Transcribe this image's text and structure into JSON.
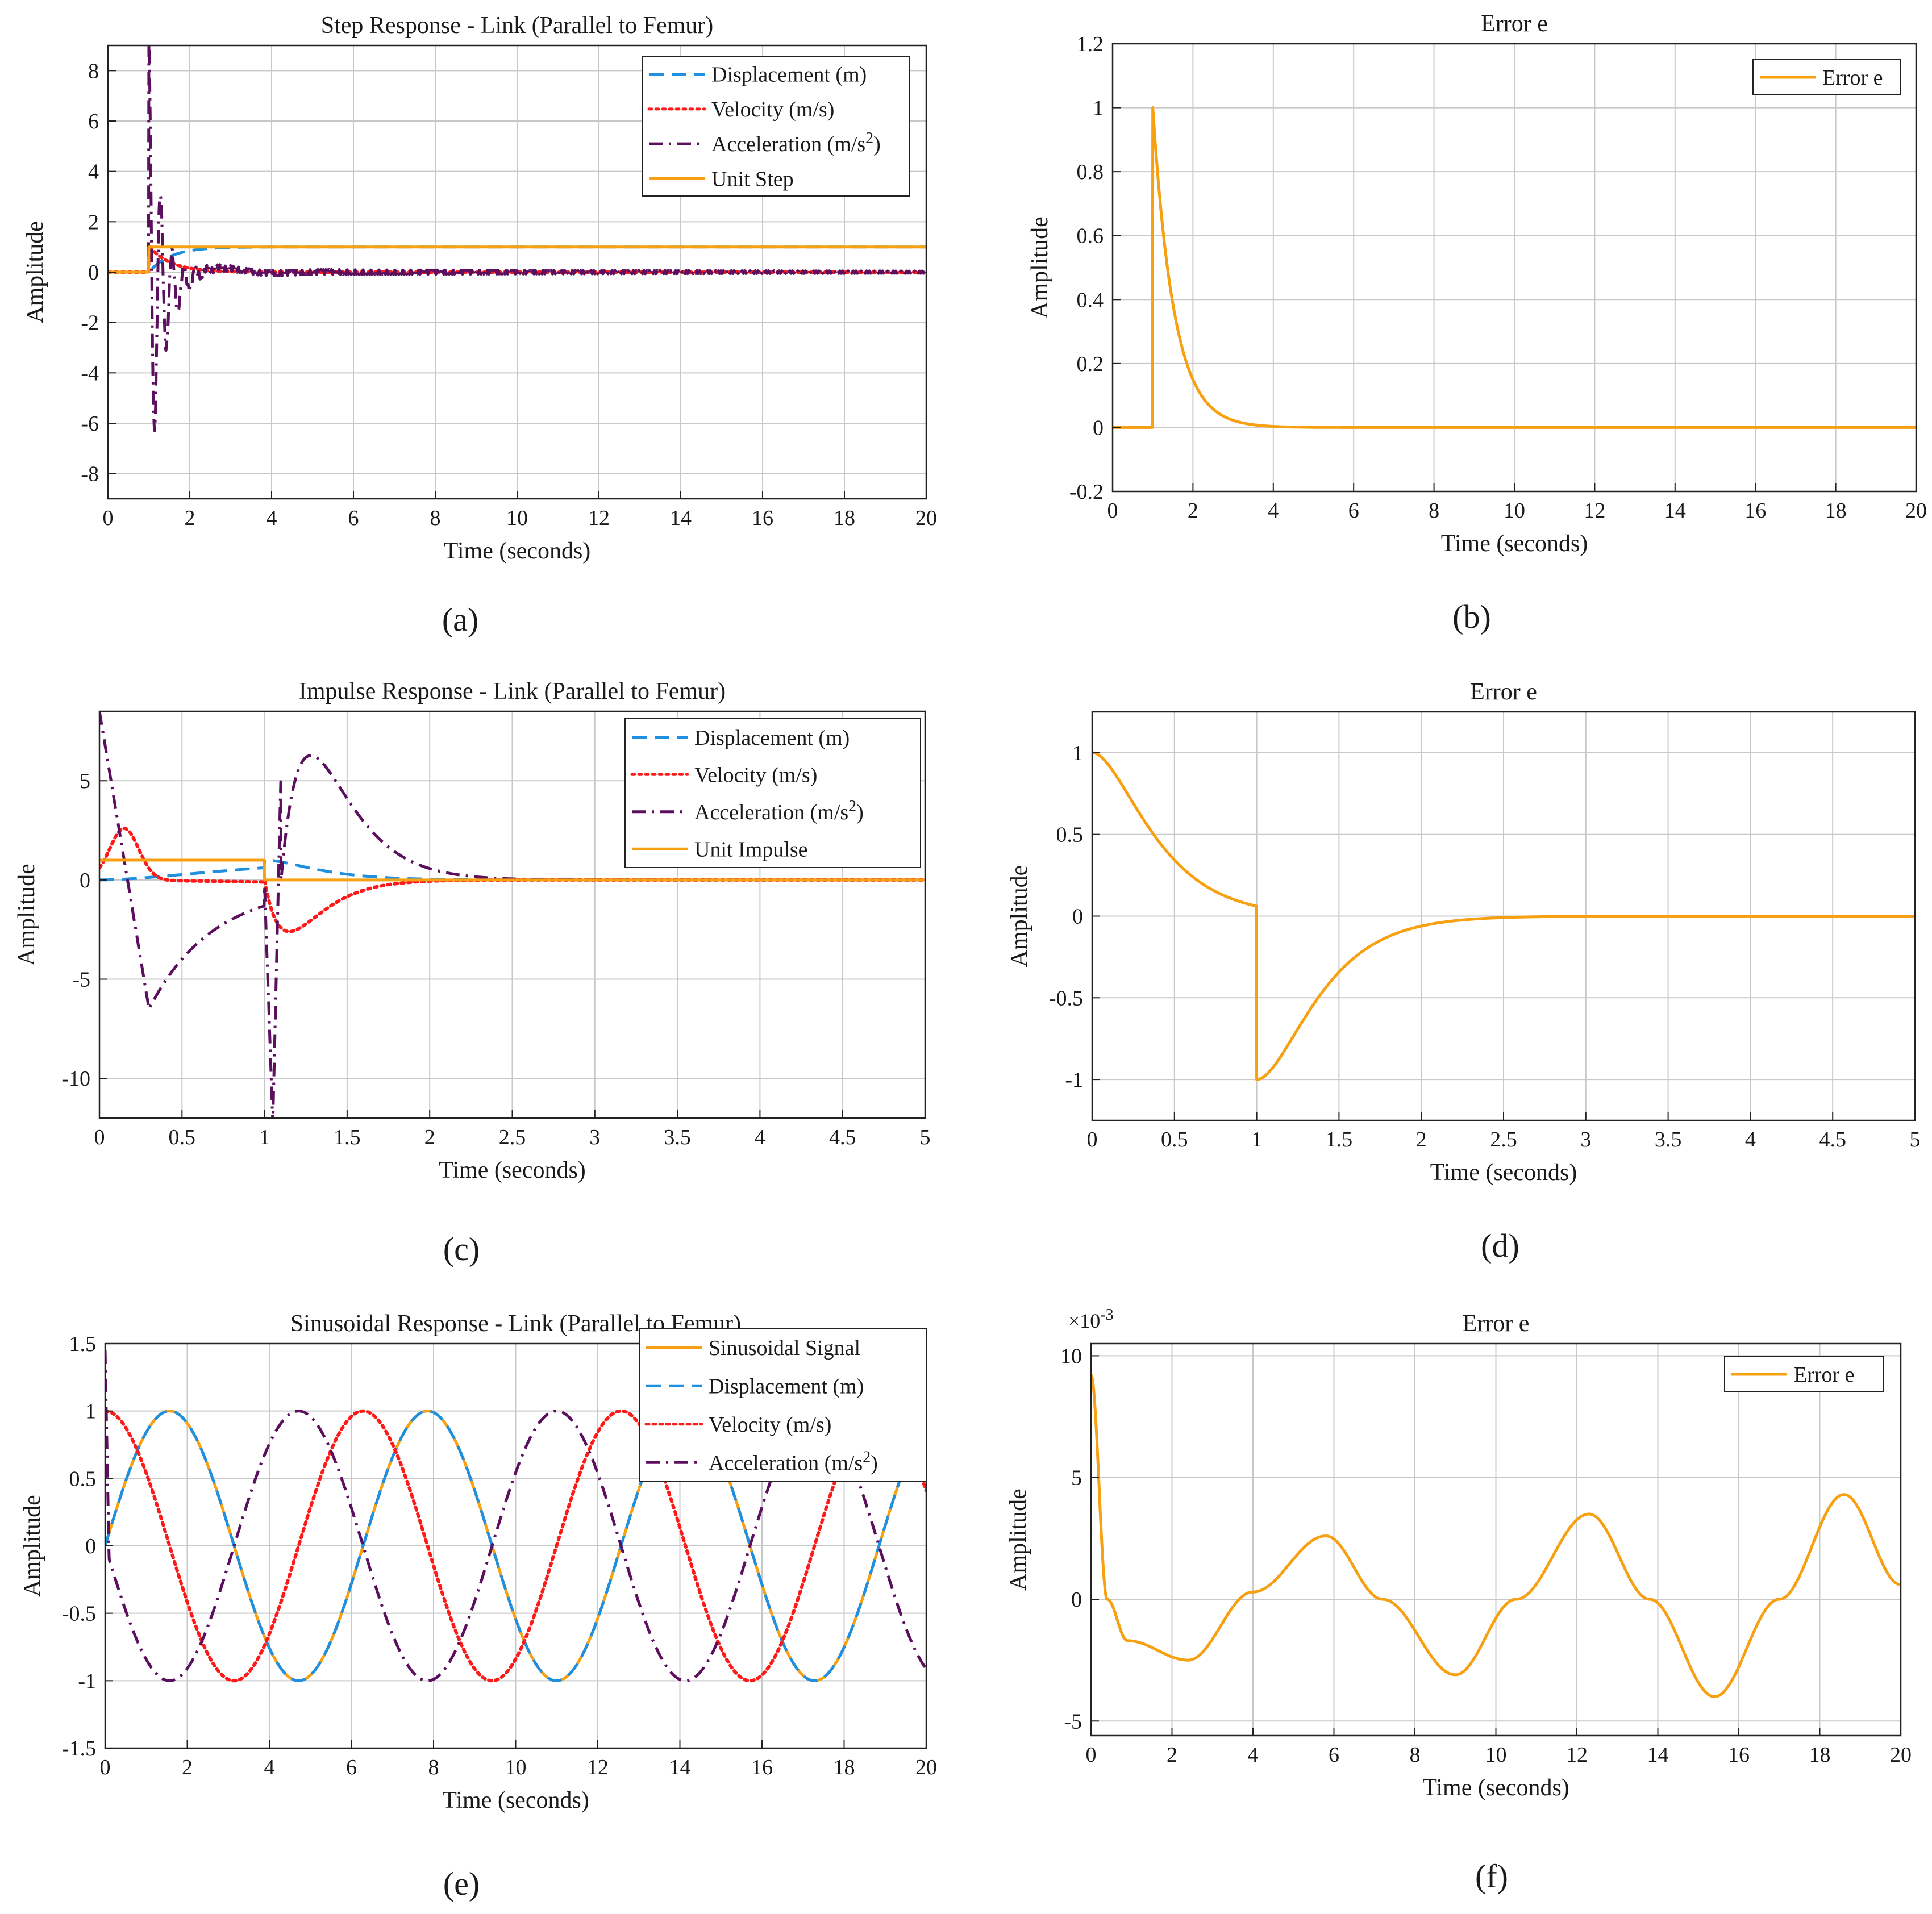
{
  "colors": {
    "displacement": "#1f8fe0",
    "velocity": "#ff1a1a",
    "acceleration": "#5b0f5e",
    "input": "#f7a012",
    "error": "#f7a012",
    "grid": "#c8c8c8",
    "axis": "#222222"
  },
  "chart_data": [
    {
      "id": "a",
      "type": "line",
      "caption": "(a)",
      "title": "Step Response - Link (Parallel to Femur)",
      "xlabel": "Time (seconds)",
      "ylabel": "Amplitude",
      "xlim": [
        0,
        20
      ],
      "ylim": [
        -9,
        9
      ],
      "xticks": [
        0,
        2,
        4,
        6,
        8,
        10,
        12,
        14,
        16,
        18,
        20
      ],
      "xtick_labels": [
        "0",
        "2",
        "4",
        "6",
        "8",
        "10",
        "12",
        "14",
        "16",
        "18",
        "20"
      ],
      "yticks": [
        -8,
        -6,
        -4,
        -2,
        0,
        2,
        4,
        6,
        8
      ],
      "ytick_labels": [
        "-8",
        "-6",
        "-4",
        "-2",
        "0",
        "2",
        "4",
        "6",
        "8"
      ],
      "legend_position": "top-right",
      "series": [
        {
          "name": "Displacement (m)",
          "label_base": "Displacement (m)",
          "color": "displacement",
          "dash": "long-dash",
          "model": "step_disp"
        },
        {
          "name": "Velocity (m/s)",
          "label_base": "Velocity (m/s)",
          "color": "velocity",
          "dash": "dotted",
          "model": "step_vel"
        },
        {
          "name": "Acceleration (m/s^2)",
          "label_base": "Acceleration (m/s",
          "superscript": "2",
          "label_end": ")",
          "color": "acceleration",
          "dash": "dash-dot",
          "model": "step_acc"
        },
        {
          "name": "Unit Step",
          "label_base": "Unit Step",
          "color": "input",
          "dash": "solid",
          "model": "step_input"
        }
      ]
    },
    {
      "id": "b",
      "type": "line",
      "caption": "(b)",
      "title": "Error e",
      "xlabel": "Time (seconds)",
      "ylabel": "Amplitude",
      "xlim": [
        0,
        20
      ],
      "ylim": [
        -0.2,
        1.2
      ],
      "xticks": [
        0,
        2,
        4,
        6,
        8,
        10,
        12,
        14,
        16,
        18,
        20
      ],
      "xtick_labels": [
        "0",
        "2",
        "4",
        "6",
        "8",
        "10",
        "12",
        "14",
        "16",
        "18",
        "20"
      ],
      "yticks": [
        -0.2,
        0,
        0.2,
        0.4,
        0.6,
        0.8,
        1,
        1.2
      ],
      "ytick_labels": [
        "-0.2",
        "0",
        "0.2",
        "0.4",
        "0.6",
        "0.8",
        "1",
        "1.2"
      ],
      "legend_position": "top-right",
      "series": [
        {
          "name": "Error e",
          "label_base": "Error e",
          "color": "error",
          "dash": "solid",
          "model": "step_err"
        }
      ]
    },
    {
      "id": "c",
      "type": "line",
      "caption": "(c)",
      "title": "Impulse Response - Link (Parallel to Femur)",
      "xlabel": "Time (seconds)",
      "ylabel": "Amplitude",
      "xlim": [
        0,
        5
      ],
      "ylim": [
        -12,
        8.5
      ],
      "xticks": [
        0,
        0.5,
        1,
        1.5,
        2,
        2.5,
        3,
        3.5,
        4,
        4.5,
        5
      ],
      "xtick_labels": [
        "0",
        "0.5",
        "1",
        "1.5",
        "2",
        "2.5",
        "3",
        "3.5",
        "4",
        "4.5",
        "5"
      ],
      "yticks": [
        -10,
        -5,
        0,
        5
      ],
      "ytick_labels": [
        "-10",
        "-5",
        "0",
        "5"
      ],
      "legend_position": "top-right",
      "series": [
        {
          "name": "Displacement (m)",
          "label_base": "Displacement (m)",
          "color": "displacement",
          "dash": "long-dash",
          "model": "imp_disp"
        },
        {
          "name": "Velocity (m/s)",
          "label_base": "Velocity (m/s)",
          "color": "velocity",
          "dash": "dotted",
          "model": "imp_vel"
        },
        {
          "name": "Acceleration (m/s^2)",
          "label_base": "Acceleration (m/s",
          "superscript": "2",
          "label_end": ")",
          "color": "acceleration",
          "dash": "dash-dot",
          "model": "imp_acc"
        },
        {
          "name": "Unit Impulse",
          "label_base": "Unit Impulse",
          "color": "input",
          "dash": "solid",
          "model": "imp_input"
        }
      ]
    },
    {
      "id": "d",
      "type": "line",
      "caption": "(d)",
      "title": "Error e",
      "xlabel": "Time (seconds)",
      "ylabel": "Amplitude",
      "xlim": [
        0,
        5
      ],
      "ylim": [
        -1.25,
        1.25
      ],
      "xticks": [
        0,
        0.5,
        1,
        1.5,
        2,
        2.5,
        3,
        3.5,
        4,
        4.5,
        5
      ],
      "xtick_labels": [
        "0",
        "0.5",
        "1",
        "1.5",
        "2",
        "2.5",
        "3",
        "3.5",
        "4",
        "4.5",
        "5"
      ],
      "yticks": [
        -1,
        -0.5,
        0,
        0.5,
        1
      ],
      "ytick_labels": [
        "-1",
        "-0.5",
        "0",
        "0.5",
        "1"
      ],
      "legend_position": "none",
      "series": [
        {
          "name": "Error e",
          "label_base": "Error e",
          "color": "error",
          "dash": "solid",
          "model": "imp_err"
        }
      ]
    },
    {
      "id": "e",
      "type": "line",
      "caption": "(e)",
      "title": "Sinusoidal Response - Link (Parallel to Femur)",
      "xlabel": "Time (seconds)",
      "ylabel": "Amplitude",
      "xlim": [
        0,
        20
      ],
      "ylim": [
        -1.5,
        1.5
      ],
      "xticks": [
        0,
        2,
        4,
        6,
        8,
        10,
        12,
        14,
        16,
        18,
        20
      ],
      "xtick_labels": [
        "0",
        "2",
        "4",
        "6",
        "8",
        "10",
        "12",
        "14",
        "16",
        "18",
        "20"
      ],
      "yticks": [
        -1.5,
        -1,
        -0.5,
        0,
        0.5,
        1,
        1.5
      ],
      "ytick_labels": [
        "-1.5",
        "-1",
        "-0.5",
        "0",
        "0.5",
        "1",
        "1.5"
      ],
      "legend_position": "top-right",
      "series": [
        {
          "name": "Sinusoidal Signal",
          "label_base": "Sinusoidal Signal",
          "color": "input",
          "dash": "solid",
          "model": "sin_input"
        },
        {
          "name": "Displacement (m)",
          "label_base": "Displacement (m)",
          "color": "displacement",
          "dash": "long-dash",
          "model": "sin_disp"
        },
        {
          "name": "Velocity (m/s)",
          "label_base": "Velocity (m/s)",
          "color": "velocity",
          "dash": "dotted",
          "model": "sin_vel"
        },
        {
          "name": "Acceleration (m/s^2)",
          "label_base": "Acceleration (m/s",
          "superscript": "2",
          "label_end": ")",
          "color": "acceleration",
          "dash": "dash-dot",
          "model": "sin_acc"
        }
      ]
    },
    {
      "id": "f",
      "type": "line",
      "caption": "(f)",
      "title": "Error e",
      "xlabel": "Time (seconds)",
      "ylabel": "Amplitude",
      "exponent_label": "×10",
      "exponent_power": "-3",
      "xlim": [
        0,
        20
      ],
      "ylim": [
        -5.6,
        10.5
      ],
      "xticks": [
        0,
        2,
        4,
        6,
        8,
        10,
        12,
        14,
        16,
        18,
        20
      ],
      "xtick_labels": [
        "0",
        "2",
        "4",
        "6",
        "8",
        "10",
        "12",
        "14",
        "16",
        "18",
        "20"
      ],
      "yticks": [
        -5,
        0,
        5,
        10
      ],
      "ytick_labels": [
        "-5",
        "0",
        "5",
        "10"
      ],
      "legend_position": "top-right",
      "series": [
        {
          "name": "Error e",
          "label_base": "Error e",
          "color": "error",
          "dash": "solid",
          "model": "sin_err",
          "key_points": [
            [
              0,
              9.2
            ],
            [
              0.4,
              0
            ],
            [
              0.9,
              -1.7
            ],
            [
              2.4,
              -2.5
            ],
            [
              4,
              0.3
            ],
            [
              5.8,
              2.6
            ],
            [
              7.2,
              0
            ],
            [
              9,
              -3.1
            ],
            [
              10.5,
              0
            ],
            [
              12.3,
              3.5
            ],
            [
              13.8,
              0
            ],
            [
              15.4,
              -4
            ],
            [
              17,
              0
            ],
            [
              18.6,
              4.3
            ],
            [
              20,
              0.6
            ]
          ]
        }
      ]
    }
  ]
}
